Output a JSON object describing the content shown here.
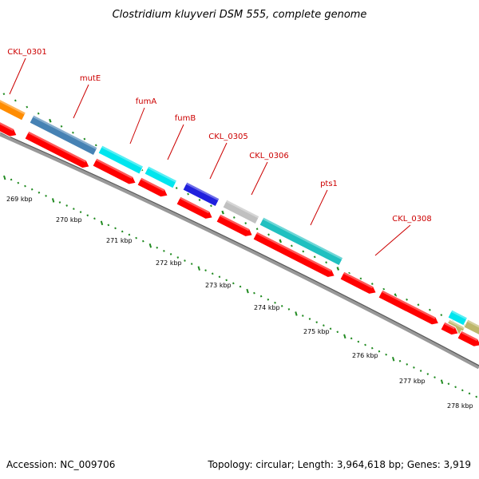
{
  "title": "Clostridium kluyveri DSM 555, complete genome",
  "footer": {
    "accession": "Accession: NC_009706",
    "summary": "Topology: circular; Length: 3,964,618 bp; Genes: 3,919"
  },
  "colors": {
    "label": "#cc0000",
    "leader": "#cc0000",
    "backbone": "#888888",
    "tick_green": "#228b22",
    "cds_red": "#ff0000"
  },
  "genes": [
    {
      "name": "CKL_0301",
      "color": "#ff8c00"
    },
    {
      "name": "mutE",
      "color": "#4682b4"
    },
    {
      "name": "fumA",
      "color": "#00e5ee"
    },
    {
      "name": "fumB",
      "color": "#00e5ee"
    },
    {
      "name": "CKL_0305",
      "color": "#2020dd"
    },
    {
      "name": "CKL_0306",
      "color": "#c0c0c0"
    },
    {
      "name": "pts1",
      "color": "#20c0c0"
    },
    {
      "name": "CKL_0308",
      "color": "#ff0000"
    }
  ],
  "scale_ticks": [
    "269 kbp",
    "270 kbp",
    "271 kbp",
    "272 kbp",
    "273 kbp",
    "274 kbp",
    "275 kbp",
    "276 kbp",
    "277 kbp",
    "278 kbp"
  ]
}
